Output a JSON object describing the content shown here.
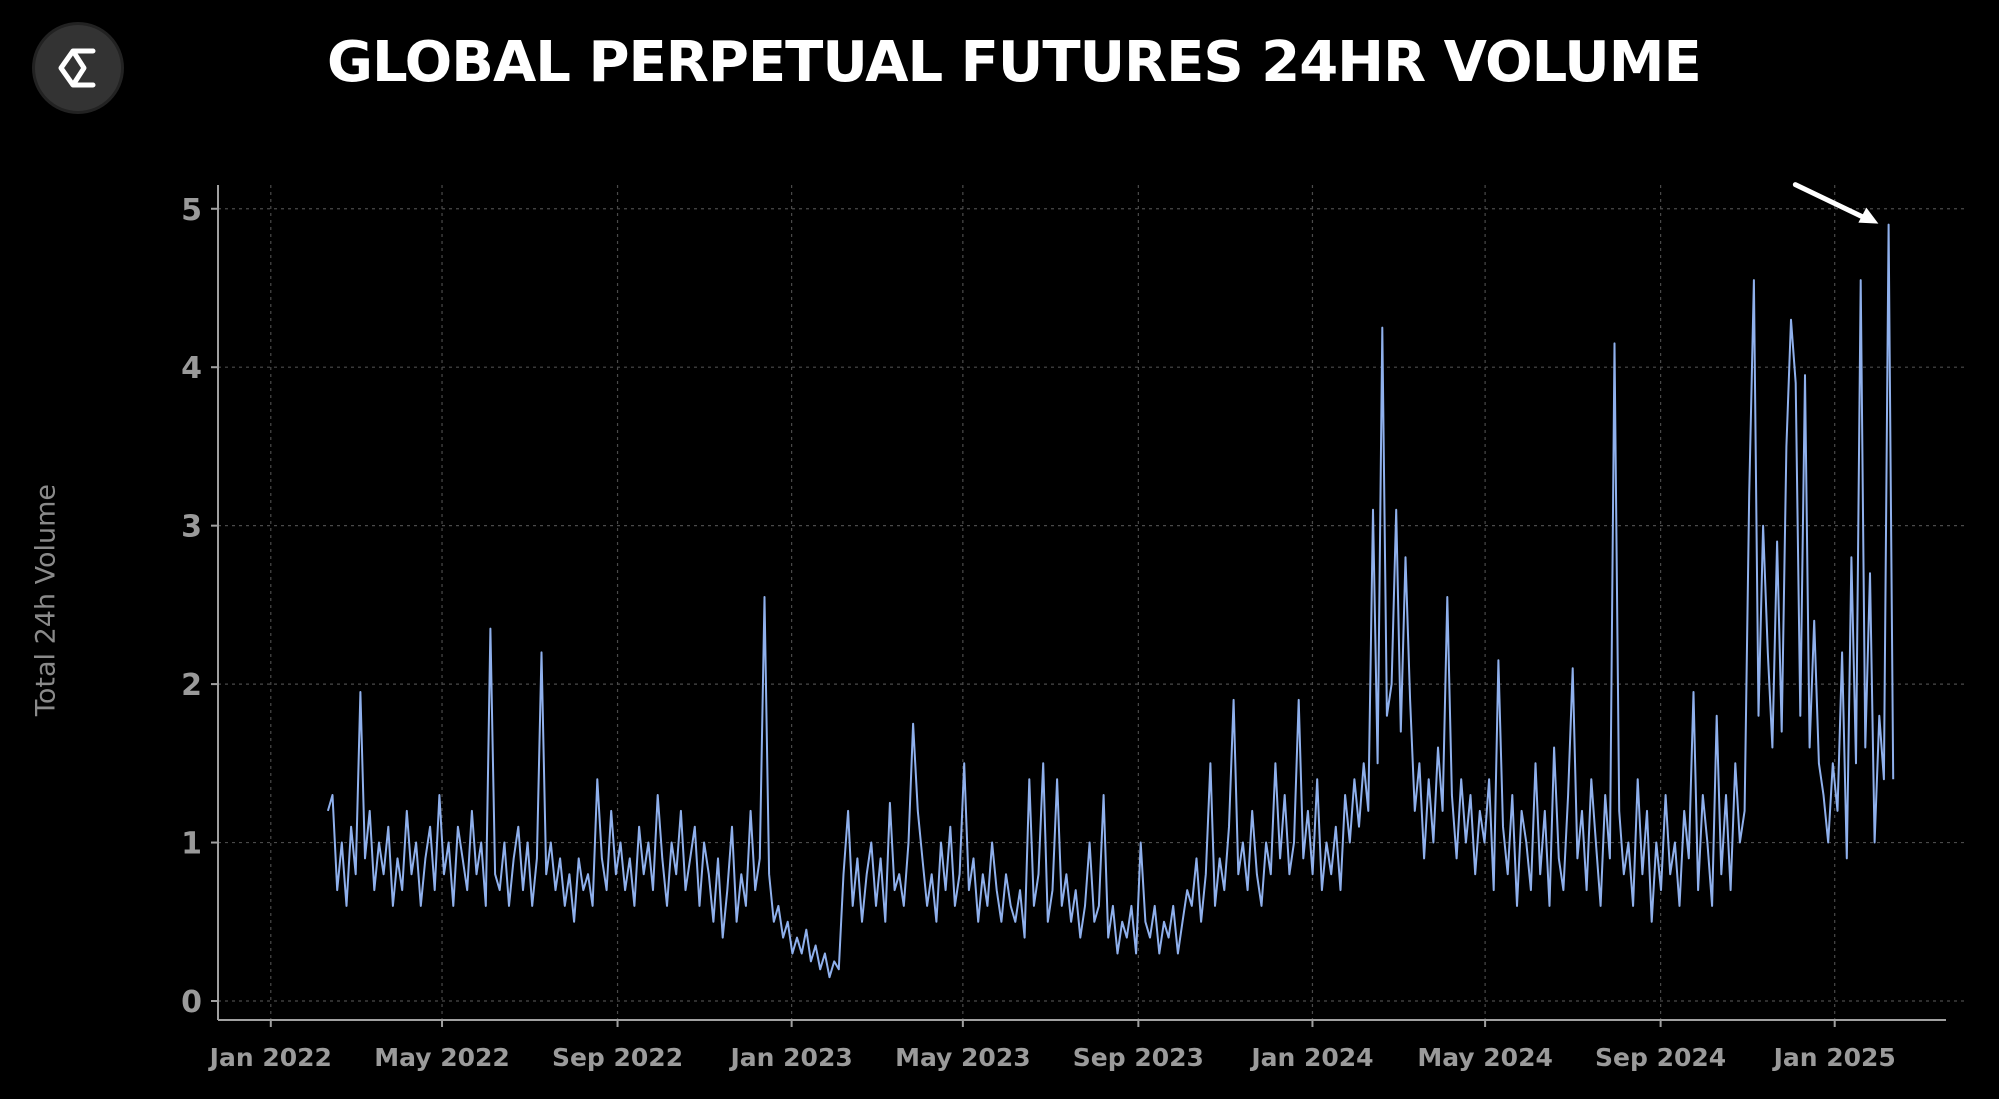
{
  "logo": {
    "icon": "sigma-icon"
  },
  "colors": {
    "background": "#000000",
    "line": "#8fb0ec",
    "grid": "#4a4a4a",
    "axis": "#a0a0a0",
    "tick_label": "#9a9a9a",
    "arrow": "#ffffff"
  },
  "chart_data": {
    "type": "line",
    "title": "GLOBAL PERPETUAL FUTURES 24HR VOLUME",
    "xlabel": "",
    "ylabel": "Total 24h Volume",
    "ylim": [
      -0.12,
      5.15
    ],
    "xlim": [
      "2021-11-25",
      "2025-03-20"
    ],
    "yticks": [
      0,
      1,
      2,
      3,
      4,
      5
    ],
    "ytick_labels": [
      "0",
      "1",
      "2",
      "3",
      "4",
      "5"
    ],
    "xticks": [
      "2022-01-01",
      "2022-05-01",
      "2022-09-01",
      "2023-01-01",
      "2023-05-01",
      "2023-09-01",
      "2024-01-01",
      "2024-05-01",
      "2024-09-01",
      "2025-01-01"
    ],
    "xtick_labels": [
      "Jan 2022",
      "May 2022",
      "Sep 2022",
      "Jan 2023",
      "May 2023",
      "Sep 2023",
      "Jan 2024",
      "May 2024",
      "Sep 2024",
      "Jan 2025"
    ],
    "grid": true,
    "start_date": "2022-02-10",
    "end_date": "2025-02-11",
    "peak_annotation": {
      "date": "2025-02-02",
      "value": 4.9,
      "marker": "arrow"
    },
    "series": [
      {
        "name": "Total 24h Volume",
        "interval_days": 3,
        "values": [
          1.2,
          1.3,
          0.7,
          1.0,
          0.6,
          1.1,
          0.8,
          1.95,
          0.9,
          1.2,
          0.7,
          1.0,
          0.8,
          1.1,
          0.6,
          0.9,
          0.7,
          1.2,
          0.8,
          1.0,
          0.6,
          0.9,
          1.1,
          0.7,
          1.3,
          0.8,
          1.0,
          0.6,
          1.1,
          0.9,
          0.7,
          1.2,
          0.8,
          1.0,
          0.6,
          2.35,
          0.8,
          0.7,
          1.0,
          0.6,
          0.9,
          1.1,
          0.7,
          1.0,
          0.6,
          0.9,
          2.2,
          0.8,
          1.0,
          0.7,
          0.9,
          0.6,
          0.8,
          0.5,
          0.9,
          0.7,
          0.8,
          0.6,
          1.4,
          0.9,
          0.7,
          1.2,
          0.8,
          1.0,
          0.7,
          0.9,
          0.6,
          1.1,
          0.8,
          1.0,
          0.7,
          1.3,
          0.9,
          0.6,
          1.0,
          0.8,
          1.2,
          0.7,
          0.9,
          1.1,
          0.6,
          1.0,
          0.8,
          0.5,
          0.9,
          0.4,
          0.7,
          1.1,
          0.5,
          0.8,
          0.6,
          1.2,
          0.7,
          0.9,
          2.55,
          0.8,
          0.5,
          0.6,
          0.4,
          0.5,
          0.3,
          0.4,
          0.3,
          0.45,
          0.25,
          0.35,
          0.2,
          0.3,
          0.15,
          0.25,
          0.2,
          0.8,
          1.2,
          0.6,
          0.9,
          0.5,
          0.8,
          1.0,
          0.6,
          0.9,
          0.5,
          1.25,
          0.7,
          0.8,
          0.6,
          1.0,
          1.75,
          1.2,
          0.9,
          0.6,
          0.8,
          0.5,
          1.0,
          0.7,
          1.1,
          0.6,
          0.8,
          1.5,
          0.7,
          0.9,
          0.5,
          0.8,
          0.6,
          1.0,
          0.7,
          0.5,
          0.8,
          0.6,
          0.5,
          0.7,
          0.4,
          1.4,
          0.6,
          0.8,
          1.5,
          0.5,
          0.7,
          1.4,
          0.6,
          0.8,
          0.5,
          0.7,
          0.4,
          0.6,
          1.0,
          0.5,
          0.6,
          1.3,
          0.4,
          0.6,
          0.3,
          0.5,
          0.4,
          0.6,
          0.3,
          1.0,
          0.5,
          0.4,
          0.6,
          0.3,
          0.5,
          0.4,
          0.6,
          0.3,
          0.5,
          0.7,
          0.6,
          0.9,
          0.5,
          0.8,
          1.5,
          0.6,
          0.9,
          0.7,
          1.1,
          1.9,
          0.8,
          1.0,
          0.7,
          1.2,
          0.8,
          0.6,
          1.0,
          0.8,
          1.5,
          0.9,
          1.3,
          0.8,
          1.0,
          1.9,
          0.9,
          1.2,
          0.8,
          1.4,
          0.7,
          1.0,
          0.8,
          1.1,
          0.7,
          1.3,
          1.0,
          1.4,
          1.1,
          1.5,
          1.2,
          3.1,
          1.5,
          4.25,
          1.8,
          2.0,
          3.1,
          1.7,
          2.8,
          1.9,
          1.2,
          1.5,
          0.9,
          1.4,
          1.0,
          1.6,
          1.2,
          2.55,
          1.3,
          0.9,
          1.4,
          1.0,
          1.3,
          0.8,
          1.2,
          1.0,
          1.4,
          0.7,
          2.15,
          1.1,
          0.8,
          1.3,
          0.6,
          1.2,
          1.0,
          0.7,
          1.5,
          0.8,
          1.2,
          0.6,
          1.6,
          0.9,
          0.7,
          1.3,
          2.1,
          0.9,
          1.2,
          0.7,
          1.4,
          1.0,
          0.6,
          1.3,
          0.9,
          4.15,
          1.2,
          0.8,
          1.0,
          0.6,
          1.4,
          0.8,
          1.2,
          0.5,
          1.0,
          0.7,
          1.3,
          0.8,
          1.0,
          0.6,
          1.2,
          0.9,
          1.95,
          0.7,
          1.3,
          1.0,
          0.6,
          1.8,
          0.8,
          1.3,
          0.7,
          1.5,
          1.0,
          1.2,
          3.2,
          4.55,
          1.8,
          3.0,
          2.2,
          1.6,
          2.9,
          1.7,
          3.5,
          4.3,
          3.9,
          1.8,
          3.95,
          1.6,
          2.4,
          1.5,
          1.3,
          1.0,
          1.5,
          1.2,
          2.2,
          0.9,
          2.8,
          1.5,
          4.55,
          1.6,
          2.7,
          1.0,
          1.8,
          1.4,
          4.9,
          1.4
        ]
      }
    ]
  }
}
